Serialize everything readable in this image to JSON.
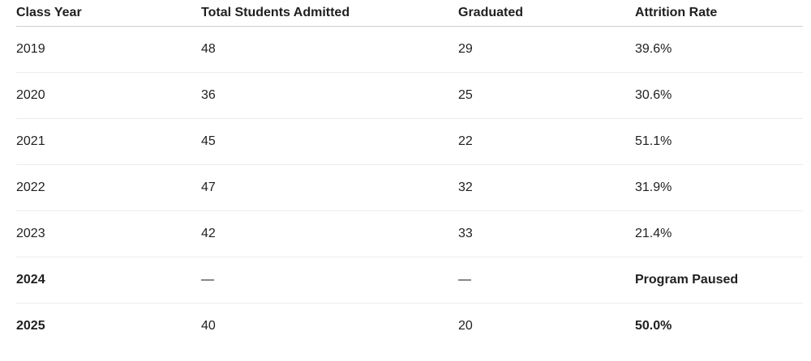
{
  "table": {
    "header": [
      "Class Year",
      "Total Students Admitted",
      "Graduated",
      "Attrition Rate"
    ],
    "rows": [
      [
        "2019",
        "48",
        "29",
        "39.6%"
      ],
      [
        "2020",
        "36",
        "25",
        "30.6%"
      ],
      [
        "2021",
        "45",
        "22",
        "51.1%"
      ],
      [
        "2022",
        "47",
        "32",
        "31.9%"
      ],
      [
        "2023",
        "42",
        "33",
        "21.4%"
      ],
      [
        "2024",
        "—",
        "—",
        "Program Paused"
      ],
      [
        "2025",
        "40",
        "20",
        "50.0%"
      ]
    ]
  }
}
